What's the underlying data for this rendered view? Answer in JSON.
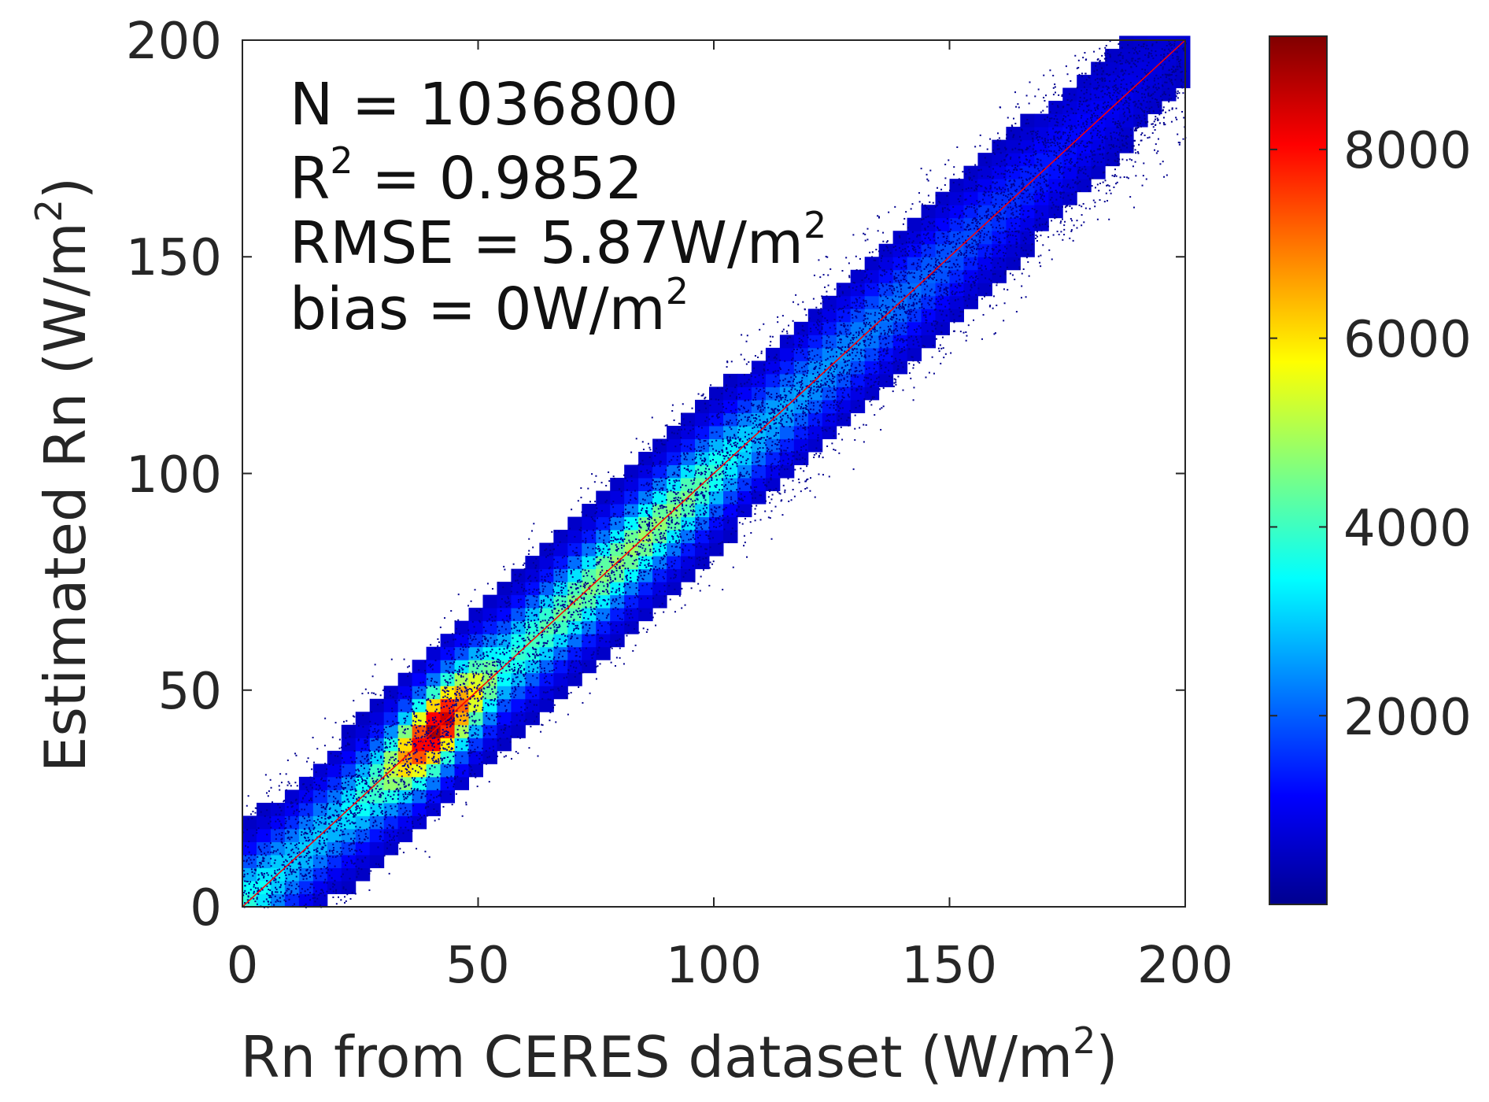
{
  "chart_data": {
    "type": "heatmap",
    "subtype": "density scatter",
    "xlabel": "Rn from CERES dataset (W/m",
    "xlabel_sup": "2",
    "xlabel_end": ")",
    "ylabel": "Estimated Rn   (W/m",
    "ylabel_sup": "2",
    "ylabel_end": ")",
    "xlim": [
      0,
      200
    ],
    "ylim": [
      0,
      200
    ],
    "xticks": [
      "0",
      "50",
      "100",
      "150",
      "200"
    ],
    "yticks": [
      "0",
      "50",
      "100",
      "150",
      "200"
    ],
    "colorbar": {
      "range": [
        0,
        9200
      ],
      "ticks": [
        "2000",
        "4000",
        "6000",
        "8000"
      ],
      "colormap": "jet"
    },
    "annotations": {
      "n": "N = 1036800",
      "r2_pre": "R",
      "r2_sup": "2",
      "r2_post": " = 0.9852",
      "rmse_pre": "RMSE = 5.87W/m",
      "rmse_sup": "2",
      "bias_pre": "bias = 0W/m",
      "bias_sup": "2"
    },
    "stats": {
      "N": 1036800,
      "R2": 0.9852,
      "RMSE": 5.87,
      "bias": 0
    },
    "reference_line": {
      "type": "1:1",
      "color": "#ff0000"
    },
    "bin_size": 3,
    "spread_sigma": 5.87,
    "density_profile": {
      "x": [
        0,
        10,
        20,
        30,
        38,
        42,
        46,
        55,
        70,
        85,
        95,
        110,
        130,
        150,
        170,
        190,
        200
      ],
      "peak_count": [
        3600,
        2600,
        2600,
        4200,
        8200,
        9200,
        7200,
        3400,
        4200,
        4600,
        4200,
        2400,
        2000,
        1500,
        900,
        400,
        200
      ]
    }
  }
}
